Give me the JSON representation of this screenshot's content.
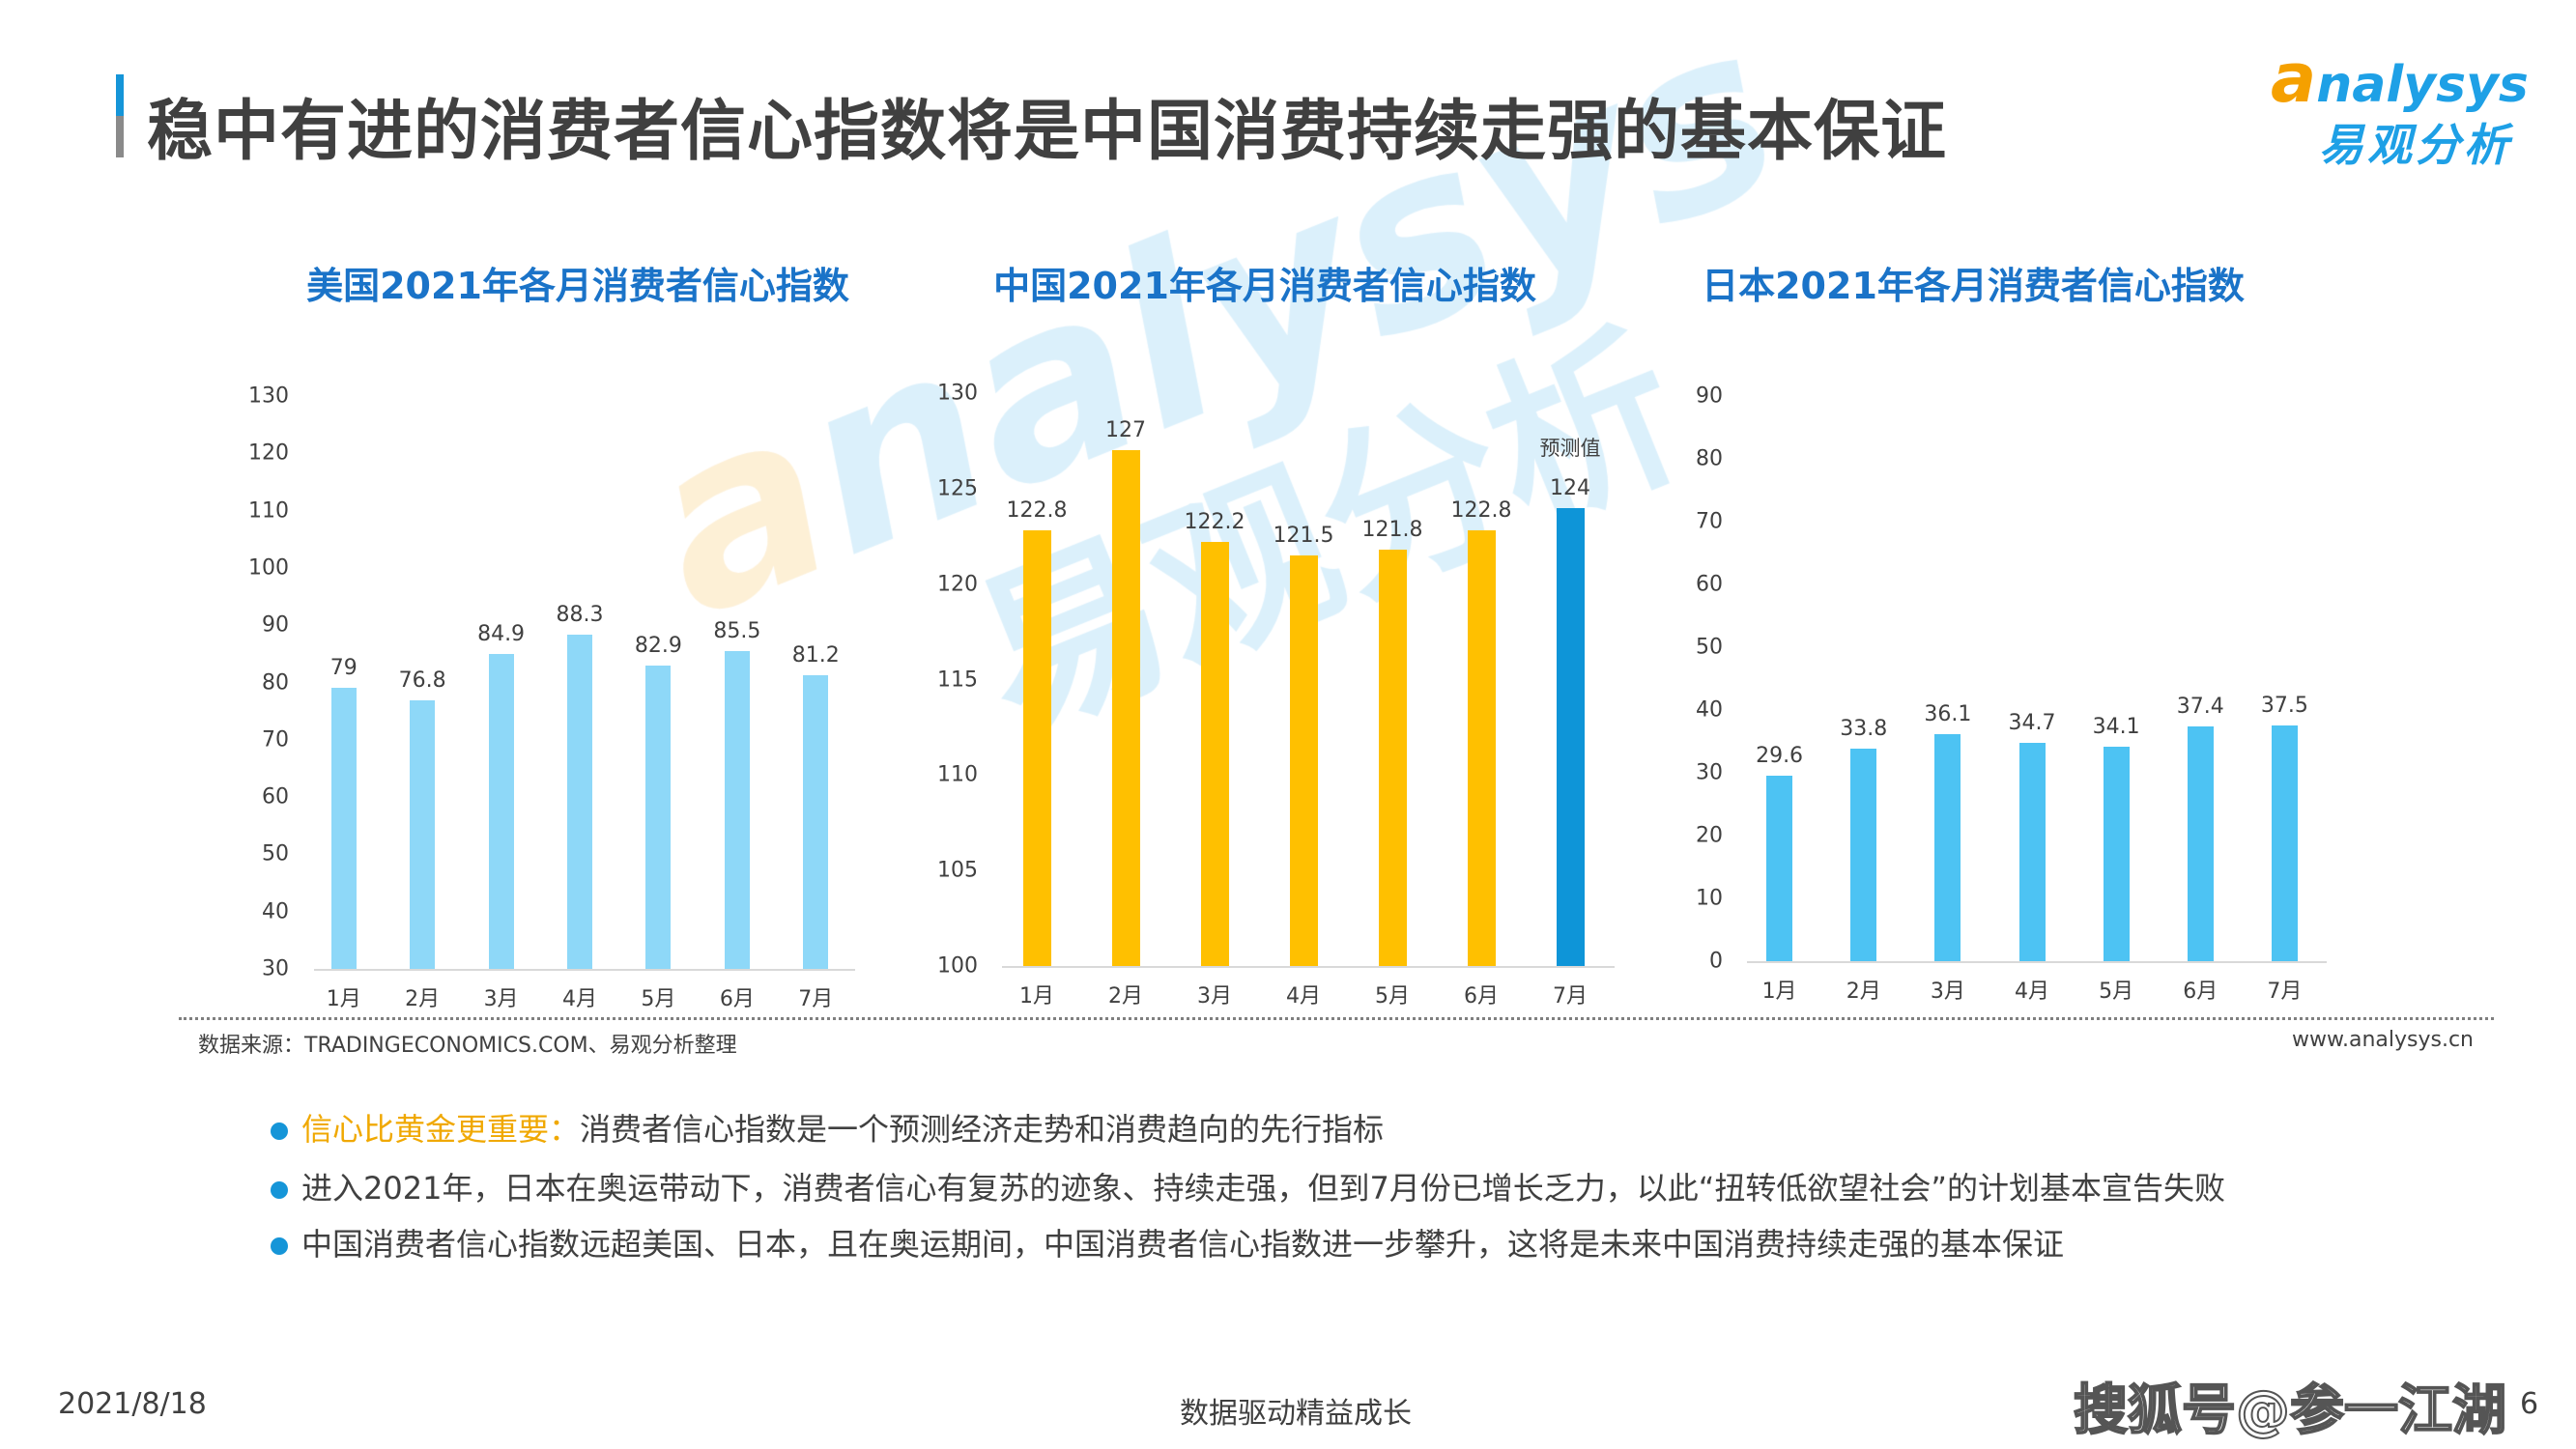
{
  "header": {
    "title": "稳中有进的消费者信心指数将是中国消费持续走强的基本保证",
    "logo_en": "analysys",
    "logo_cn": "易观分析"
  },
  "watermark": {
    "en": "analysys",
    "cn": "易观分析"
  },
  "colors": {
    "title_blue": "#1a73c8",
    "us_bar": "#8ed8f8",
    "china_bar": "#ffc000",
    "china_forecast_bar": "#0e95d8",
    "japan_bar": "#4dc3f3",
    "highlight": "#f0a800",
    "bullet": "#1595d8"
  },
  "chart_data": [
    {
      "type": "bar",
      "title": "美国2021年各月消费者信心指数",
      "categories": [
        "1月",
        "2月",
        "3月",
        "4月",
        "5月",
        "6月",
        "7月"
      ],
      "values": [
        79,
        76.8,
        84.9,
        88.3,
        82.9,
        85.5,
        81.2
      ],
      "value_labels": [
        "79",
        "76.8",
        "84.9",
        "88.3",
        "82.9",
        "85.5",
        "81.2"
      ],
      "ylim": [
        30,
        130
      ],
      "yticks": [
        "30",
        "40",
        "50",
        "60",
        "70",
        "80",
        "90",
        "100",
        "110",
        "120",
        "130"
      ],
      "grid": false
    },
    {
      "type": "bar",
      "title": "中国2021年各月消费者信心指数",
      "categories": [
        "1月",
        "2月",
        "3月",
        "4月",
        "5月",
        "6月",
        "7月"
      ],
      "values": [
        122.8,
        127,
        122.2,
        121.5,
        121.8,
        122.8,
        124
      ],
      "value_labels": [
        "122.8",
        "127",
        "122.2",
        "121.5",
        "121.8",
        "122.8",
        "124"
      ],
      "annotation": "预测值",
      "forecast_index": 6,
      "ylim": [
        100,
        130
      ],
      "yticks": [
        "100",
        "105",
        "110",
        "115",
        "120",
        "125",
        "130"
      ],
      "grid": false
    },
    {
      "type": "bar",
      "title": "日本2021年各月消费者信心指数",
      "categories": [
        "1月",
        "2月",
        "3月",
        "4月",
        "5月",
        "6月",
        "7月"
      ],
      "values": [
        29.6,
        33.8,
        36.1,
        34.7,
        34.1,
        37.4,
        37.5
      ],
      "value_labels": [
        "29.6",
        "33.8",
        "36.1",
        "34.7",
        "34.1",
        "37.4",
        "37.5"
      ],
      "ylim": [
        0,
        90
      ],
      "yticks": [
        "0",
        "10",
        "20",
        "30",
        "40",
        "50",
        "60",
        "70",
        "80",
        "90"
      ],
      "grid": false
    }
  ],
  "source": "数据来源：TRADINGECONOMICS.COM、易观分析整理",
  "site": "www.analysys.cn",
  "bullets": [
    {
      "highlight": "信心比黄金更重要：",
      "text": "消费者信心指数是一个预测经济走势和消费趋向的先行指标"
    },
    {
      "highlight": "",
      "text": "进入2021年，日本在奥运带动下，消费者信心有复苏的迹象、持续走强，但到7月份已增长乏力，以此“扭转低欲望社会”的计划基本宣告失败"
    },
    {
      "highlight": "",
      "text": "中国消费者信心指数远超美国、日本，且在奥运期间，中国消费者信心指数进一步攀升，这将是未来中国消费持续走强的基本保证"
    }
  ],
  "footer": {
    "date": "2021/8/18",
    "slogan": "数据驱动精益成长",
    "watermark": "搜狐号@参一江湖",
    "page": "6"
  }
}
